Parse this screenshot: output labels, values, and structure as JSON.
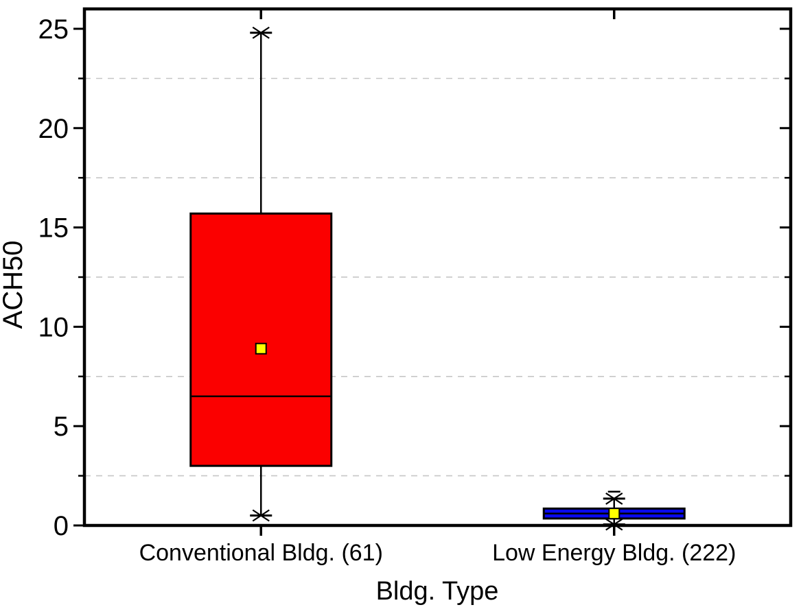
{
  "figure": {
    "background": "#ffffff",
    "frame_color": "#000000"
  },
  "chart_data": {
    "type": "boxplot",
    "title": "",
    "xlabel": "Bldg. Type",
    "ylabel": "ACH50",
    "ylim": [
      0,
      26
    ],
    "ymajor_ticks": [
      0,
      5,
      10,
      15,
      20,
      25
    ],
    "yminor_ticks": [
      2.5,
      7.5,
      12.5,
      17.5,
      22.5
    ],
    "grid": "horizontal dashed gridlines at minor ticks",
    "grid_color": "#C6C6C6",
    "legend": "none",
    "categories": [
      "Conventional Bldg. (61)",
      "Low Energy Bldg. (222)"
    ],
    "series": [
      {
        "label": "Conventional Bldg. (61)",
        "box_color": "#FB0000",
        "whisker_low": 0.5,
        "q1": 3.0,
        "median": 6.5,
        "q3": 15.7,
        "mean": 8.9,
        "whisker_high": 24.8,
        "extreme_high": null,
        "extreme_low": null
      },
      {
        "label": "Low Energy Bldg. (222)",
        "box_color": "#0A0AEE",
        "whisker_low": 0.05,
        "q1": 0.35,
        "median": 0.6,
        "q3": 0.85,
        "mean": 0.6,
        "whisker_high": 1.35,
        "extreme_high": 1.7,
        "extreme_low": null
      }
    ],
    "mean_marker": {
      "shape": "square",
      "fill": "#FFFF00",
      "border": "#000000"
    },
    "whisker_end_marker": "star (cap line + x-cross)"
  }
}
